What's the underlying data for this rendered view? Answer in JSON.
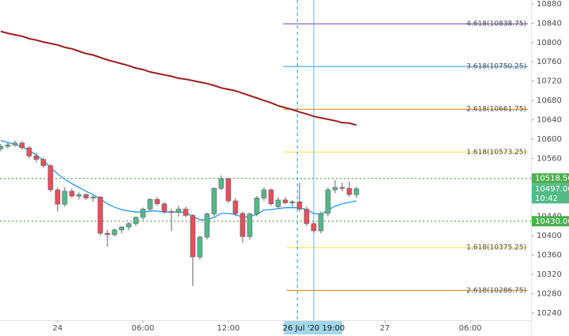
{
  "chart_data": {
    "type": "candlestick",
    "x": [
      -8,
      -7,
      -6,
      -5,
      -4,
      -3,
      -2,
      -1,
      0,
      1,
      2,
      3,
      4,
      5,
      6,
      7,
      8,
      9,
      10,
      11,
      12,
      13,
      14,
      15,
      16,
      17,
      18,
      19,
      20,
      21,
      22,
      23,
      24,
      25,
      26,
      27,
      28,
      29,
      30,
      31,
      32,
      33,
      34,
      35,
      36,
      37,
      38,
      39,
      40,
      41,
      42
    ],
    "open": [
      10580,
      10585,
      10588,
      10592,
      10582,
      10565,
      10558,
      10545,
      10495,
      10465,
      10492,
      10482,
      10485,
      10478,
      10480,
      10405,
      10402,
      10412,
      10418,
      10425,
      10438,
      10455,
      10475,
      10466,
      10450,
      10448,
      10455,
      10442,
      10356,
      10397,
      10445,
      10498,
      10518,
      10472,
      10446,
      10398,
      10445,
      10478,
      10495,
      10460,
      10474,
      10468,
      10470,
      10455,
      10425,
      10410,
      10446,
      10495,
      10500,
      10498,
      10485
    ],
    "high": [
      10590,
      10592,
      10597,
      10596,
      10586,
      10572,
      10562,
      10548,
      10500,
      10500,
      10498,
      10490,
      10488,
      10485,
      10482,
      10412,
      10415,
      10420,
      10428,
      10440,
      10458,
      10478,
      10480,
      10470,
      10456,
      10462,
      10460,
      10445,
      10400,
      10448,
      10500,
      10525,
      10520,
      10478,
      10450,
      10448,
      10482,
      10500,
      10498,
      10480,
      10480,
      10474,
      10510,
      10460,
      10430,
      10450,
      10500,
      10515,
      10510,
      10512,
      10502
    ],
    "low": [
      10575,
      10580,
      10584,
      10578,
      10560,
      10552,
      10540,
      10490,
      10450,
      10460,
      10478,
      10475,
      10474,
      10470,
      10400,
      10377,
      10398,
      10405,
      10412,
      10420,
      10432,
      10450,
      10462,
      10445,
      10410,
      10440,
      10438,
      10296,
      10350,
      10392,
      10440,
      10494,
      10468,
      10440,
      10385,
      10392,
      10440,
      10472,
      10462,
      10455,
      10465,
      10460,
      10450,
      10420,
      10405,
      10405,
      10440,
      10488,
      10492,
      10480,
      10478
    ],
    "close": [
      10585,
      10588,
      10592,
      10582,
      10565,
      10558,
      10545,
      10495,
      10465,
      10492,
      10482,
      10485,
      10478,
      10480,
      10405,
      10402,
      10412,
      10418,
      10425,
      10438,
      10455,
      10475,
      10466,
      10450,
      10448,
      10455,
      10442,
      10356,
      10397,
      10445,
      10498,
      10518,
      10472,
      10446,
      10398,
      10445,
      10478,
      10495,
      10466,
      10474,
      10468,
      10470,
      10455,
      10425,
      10410,
      10446,
      10495,
      10500,
      10498,
      10485,
      10497
    ],
    "up_color": "#53b987",
    "down_color": "#eb4d5c",
    "lines": [
      {
        "color": "#2196f3",
        "values": [
          10597,
          10593,
          10589,
          10584,
          10577,
          10567,
          10556,
          10541,
          10528,
          10517,
          10508,
          10500,
          10492,
          10485,
          10476,
          10466,
          10459,
          10454,
          10451,
          10449,
          10449,
          10451,
          10451,
          10449,
          10449,
          10449,
          10448,
          10440,
          10433,
          10433,
          10438,
          10446,
          10446,
          10444,
          10438,
          10440,
          10444,
          10453,
          10454,
          10456,
          10458,
          10458,
          10458,
          10454,
          10446,
          10444,
          10453,
          10461,
          10466,
          10469,
          10472
        ]
      },
      {
        "color": "#9c1c1c",
        "values": [
          10823,
          10819,
          10816,
          10813,
          10808,
          10805,
          10801,
          10798,
          10795,
          10790,
          10787,
          10782,
          10777,
          10774,
          10769,
          10764,
          10760,
          10756,
          10752,
          10747,
          10744,
          10739,
          10736,
          10733,
          10730,
          10726,
          10724,
          10721,
          10718,
          10715,
          10711,
          10706,
          10703,
          10700,
          10695,
          10690,
          10685,
          10680,
          10675,
          10669,
          10665,
          10661,
          10656,
          10652,
          10647,
          10644,
          10641,
          10638,
          10634,
          10633,
          10629
        ]
      }
    ],
    "levels": [
      {
        "label": "4.618(10838.75)",
        "value": 10838.75,
        "color": "#673ab7",
        "start": 31.7
      },
      {
        "label": "3.618(10750.25)",
        "value": 10750.25,
        "color": "#2196f3",
        "start": 31.7
      },
      {
        "label": "2.618(10661.75)",
        "value": 10661.75,
        "color": "#f57c00",
        "start": 31.7
      },
      {
        "label": "1.618(10573.25)",
        "value": 10573.25,
        "color": "#fdd835",
        "start": 31.7
      },
      {
        "label": "1.618(10375.25)",
        "value": 10375.25,
        "color": "#fdd835",
        "start": 32.2
      },
      {
        "label": "2.618(10286.75)",
        "value": 10286.75,
        "color": "#f57c00",
        "start": 32.2
      }
    ],
    "hlines": [
      {
        "value": 10518.5,
        "label": "10518.50",
        "color": "#4caf50"
      },
      {
        "value": 10430,
        "label": "10430.00",
        "color": "#4caf50"
      }
    ],
    "price_label": {
      "value": 10497,
      "label": "10497.00",
      "countdown": "10:42",
      "color": "#53b987"
    },
    "vlines": [
      {
        "x": 33.7,
        "style": "dashed",
        "color": "#2196f3"
      },
      {
        "x": 36,
        "style": "solid",
        "color": "#64b5f6"
      }
    ],
    "crosshair": {
      "x": 36,
      "label": "26 Jul '20 19:00"
    },
    "xlim": [
      -8.1,
      66.55
    ],
    "ylim": [
      10225,
      10888
    ],
    "xticks": [
      {
        "value": 0,
        "label": "24"
      },
      {
        "value": 12,
        "label": "06:00"
      },
      {
        "value": 24,
        "label": "12:00"
      },
      {
        "value": 46,
        "label": "27"
      },
      {
        "value": 58,
        "label": "06:00"
      }
    ],
    "yticks": [
      10240,
      10280,
      10320,
      10360,
      10400,
      10440,
      10480,
      10520,
      10560,
      10600,
      10640,
      10680,
      10720,
      10760,
      10800,
      10840,
      10880
    ]
  }
}
